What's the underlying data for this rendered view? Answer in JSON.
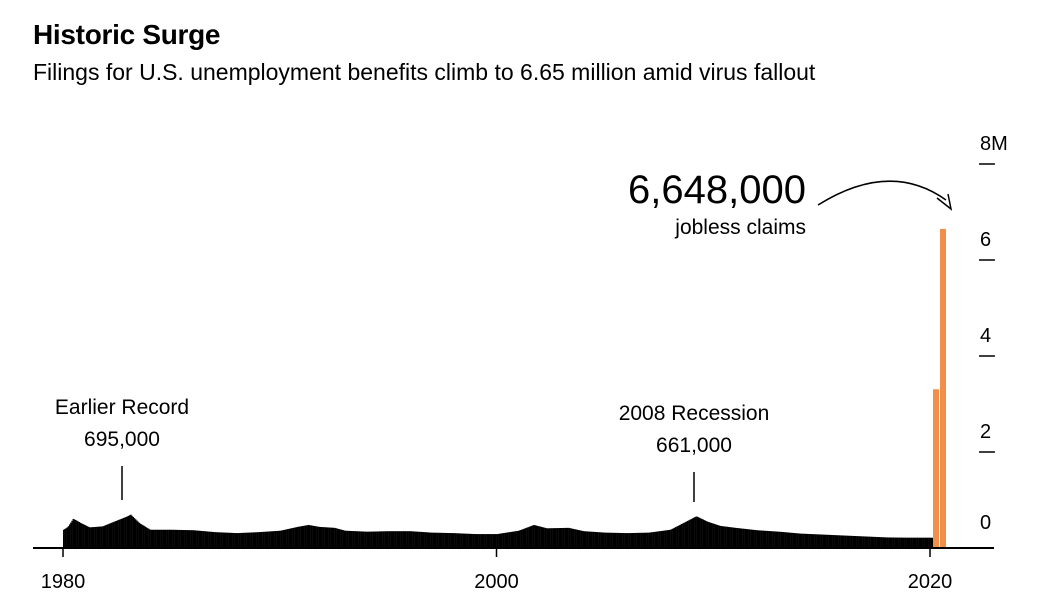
{
  "title": "Historic Surge",
  "subtitle": "Filings for U.S. unemployment benefits climb to 6.65 million amid virus fallout",
  "colors": {
    "bars": "#000000",
    "highlight": "#f0904a",
    "axis": "#000000"
  },
  "chart_data": {
    "type": "bar",
    "title": "Historic Surge",
    "subtitle": "Filings for U.S. unemployment benefits climb to 6.65 million amid virus fallout",
    "xlabel": "",
    "ylabel": "",
    "x_ticks": [
      "1980",
      "2000",
      "2020"
    ],
    "y_ticks": [
      "8M",
      "6",
      "4",
      "2",
      "0"
    ],
    "y_tick_values": [
      8000000,
      6000000,
      4000000,
      2000000,
      0
    ],
    "xlim": [
      1978.6,
      2022.7
    ],
    "ylim": [
      0,
      8000000
    ],
    "grid": false,
    "legend": "none",
    "series": [
      {
        "values_by_year_profile": [
          [
            1980.0,
            380000
          ],
          [
            1980.2,
            440000
          ],
          [
            1980.45,
            610000
          ],
          [
            1980.8,
            520000
          ],
          [
            1981.2,
            430000
          ],
          [
            1981.8,
            450000
          ],
          [
            1982.4,
            560000
          ],
          [
            1982.9,
            650000
          ],
          [
            1983.1,
            695000
          ],
          [
            1983.5,
            520000
          ],
          [
            1984.0,
            380000
          ],
          [
            1985.0,
            380000
          ],
          [
            1986.0,
            370000
          ],
          [
            1987.0,
            330000
          ],
          [
            1988.0,
            310000
          ],
          [
            1989.0,
            330000
          ],
          [
            1990.0,
            360000
          ],
          [
            1990.8,
            440000
          ],
          [
            1991.3,
            480000
          ],
          [
            1991.8,
            440000
          ],
          [
            1992.5,
            420000
          ],
          [
            1993.0,
            360000
          ],
          [
            1994.0,
            340000
          ],
          [
            1995.0,
            350000
          ],
          [
            1996.0,
            350000
          ],
          [
            1997.0,
            320000
          ],
          [
            1998.0,
            310000
          ],
          [
            1999.0,
            290000
          ],
          [
            2000.0,
            290000
          ],
          [
            2001.0,
            360000
          ],
          [
            2001.7,
            480000
          ],
          [
            2002.3,
            410000
          ],
          [
            2003.3,
            420000
          ],
          [
            2004.0,
            350000
          ],
          [
            2005.0,
            320000
          ],
          [
            2006.0,
            310000
          ],
          [
            2007.0,
            320000
          ],
          [
            2008.0,
            380000
          ],
          [
            2008.6,
            520000
          ],
          [
            2009.2,
            661000
          ],
          [
            2009.7,
            550000
          ],
          [
            2010.3,
            460000
          ],
          [
            2011.0,
            420000
          ],
          [
            2012.0,
            370000
          ],
          [
            2013.0,
            340000
          ],
          [
            2014.0,
            300000
          ],
          [
            2015.0,
            280000
          ],
          [
            2016.0,
            260000
          ],
          [
            2017.0,
            240000
          ],
          [
            2018.0,
            220000
          ],
          [
            2019.0,
            215000
          ],
          [
            2020.0,
            215000
          ],
          [
            2020.15,
            211000
          ]
        ]
      },
      {
        "name": "",
        "highlight": true,
        "points": [
          {
            "x": 2020.21,
            "value": 3307000
          },
          {
            "x": 2020.23,
            "value": 6648000
          }
        ]
      }
    ],
    "annotations": [
      {
        "label": "Earlier Record",
        "value_label": "695,000",
        "year": 1983.1
      },
      {
        "label": "2008 Recession",
        "value_label": "661,000",
        "year": 2009.2
      },
      {
        "label": "jobless claims",
        "value_label": "6,648,000",
        "year": 2020.23
      }
    ]
  }
}
